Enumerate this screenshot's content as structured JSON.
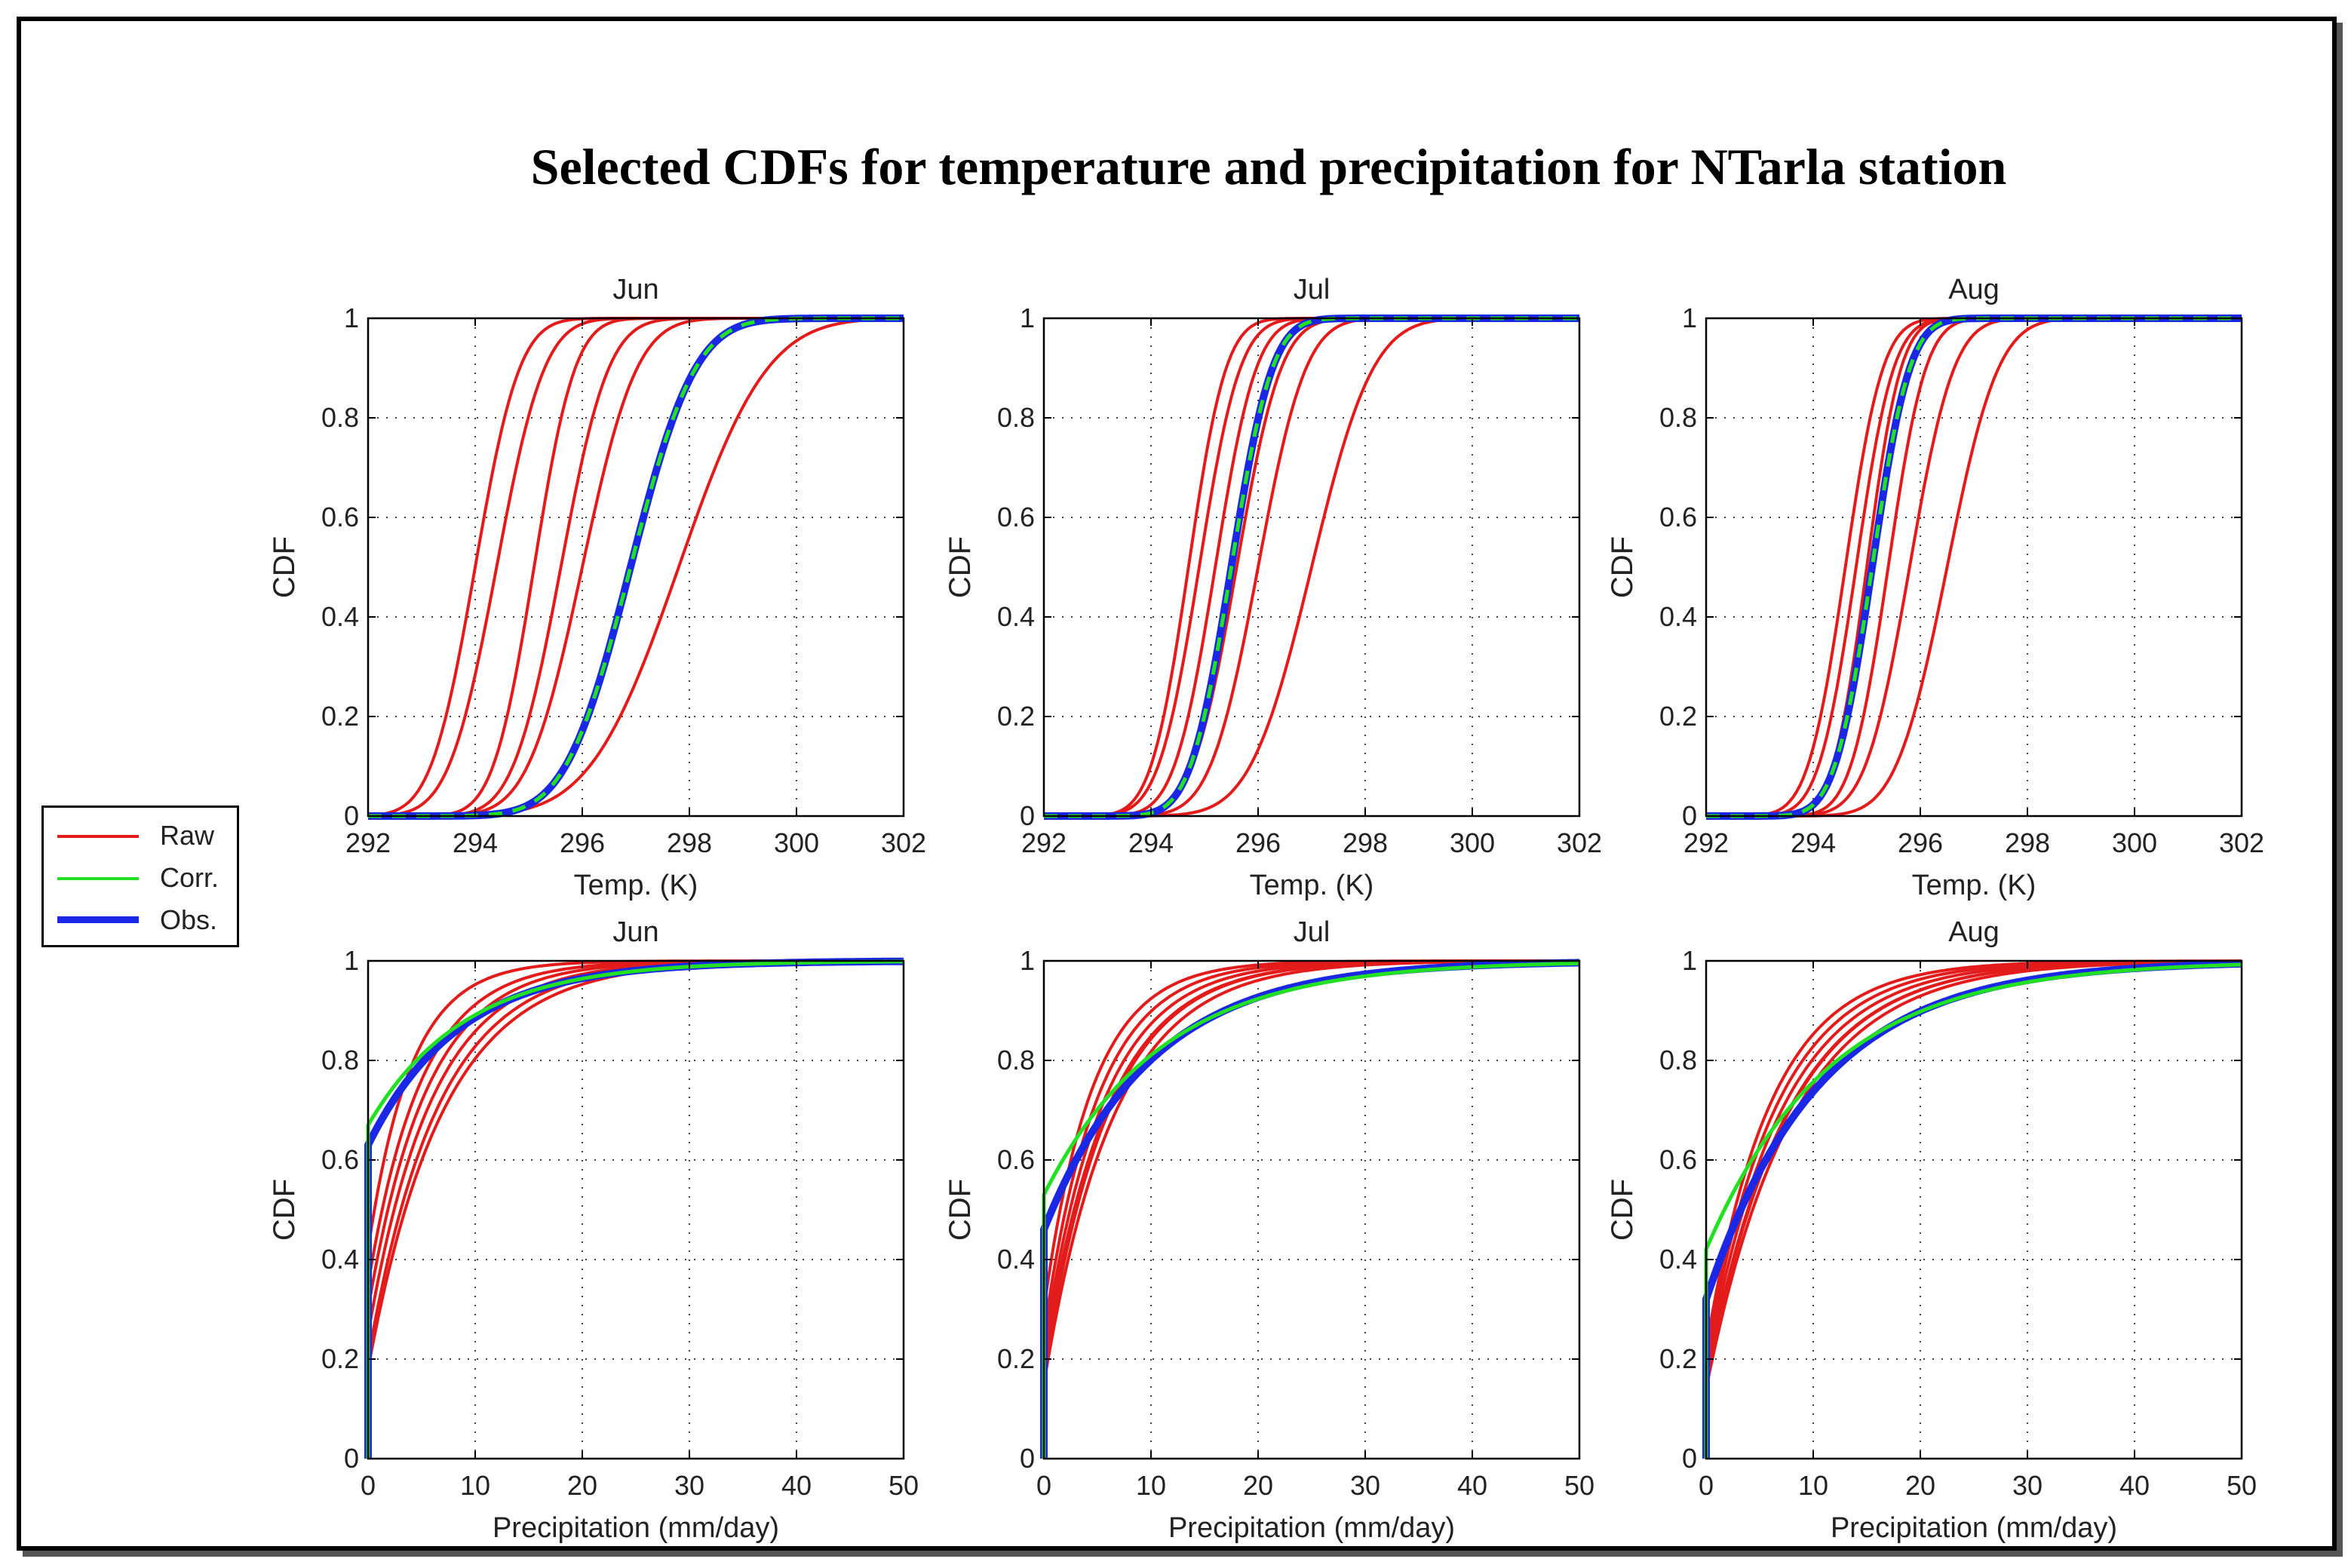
{
  "title": "Selected CDFs for temperature and precipitation for NTarla station",
  "legend": {
    "items": [
      {
        "label": "Raw",
        "color": "#e31b1b"
      },
      {
        "label": "Corr.",
        "color": "#22e022"
      },
      {
        "label": "Obs.",
        "color": "#1a28e6"
      }
    ]
  },
  "chart_data": [
    {
      "type": "line",
      "title": "Jun",
      "xlabel": "Temp. (K)",
      "ylabel": "CDF",
      "xlim": [
        292,
        302
      ],
      "ylim": [
        0,
        1
      ],
      "xticks": [
        292,
        294,
        296,
        298,
        300,
        302
      ],
      "yticks": [
        0,
        0.2,
        0.4,
        0.6,
        0.8,
        1
      ],
      "grid": true,
      "raw_members": [
        {
          "mu": 294.0,
          "sigma": 0.65
        },
        {
          "mu": 294.4,
          "sigma": 0.7
        },
        {
          "mu": 295.1,
          "sigma": 0.6
        },
        {
          "mu": 295.6,
          "sigma": 0.7
        },
        {
          "mu": 296.0,
          "sigma": 0.8
        },
        {
          "mu": 297.8,
          "sigma": 1.3
        }
      ],
      "corrected": {
        "mu": 296.9,
        "sigma": 0.95
      },
      "observed": {
        "mu": 296.9,
        "sigma": 0.95
      }
    },
    {
      "type": "line",
      "title": "Jul",
      "xlabel": "Temp. (K)",
      "ylabel": "CDF",
      "xlim": [
        292,
        302
      ],
      "ylim": [
        0,
        1
      ],
      "xticks": [
        292,
        294,
        296,
        298,
        300,
        302
      ],
      "yticks": [
        0,
        0.2,
        0.4,
        0.6,
        0.8,
        1
      ],
      "grid": true,
      "raw_members": [
        {
          "mu": 294.7,
          "sigma": 0.55
        },
        {
          "mu": 294.9,
          "sigma": 0.6
        },
        {
          "mu": 295.2,
          "sigma": 0.6
        },
        {
          "mu": 295.6,
          "sigma": 0.65
        },
        {
          "mu": 296.0,
          "sigma": 0.7
        },
        {
          "mu": 297.0,
          "sigma": 0.9
        }
      ],
      "corrected": {
        "mu": 295.5,
        "sigma": 0.6
      },
      "observed": {
        "mu": 295.5,
        "sigma": 0.6
      }
    },
    {
      "type": "line",
      "title": "Aug",
      "xlabel": "Temp. (K)",
      "ylabel": "CDF",
      "xlim": [
        292,
        302
      ],
      "ylim": [
        0,
        1
      ],
      "xticks": [
        292,
        294,
        296,
        298,
        300,
        302
      ],
      "yticks": [
        0,
        0.2,
        0.4,
        0.6,
        0.8,
        1
      ],
      "grid": true,
      "raw_members": [
        {
          "mu": 294.6,
          "sigma": 0.55
        },
        {
          "mu": 294.8,
          "sigma": 0.55
        },
        {
          "mu": 295.0,
          "sigma": 0.5
        },
        {
          "mu": 295.4,
          "sigma": 0.55
        },
        {
          "mu": 295.8,
          "sigma": 0.65
        },
        {
          "mu": 296.5,
          "sigma": 0.75
        }
      ],
      "corrected": {
        "mu": 295.1,
        "sigma": 0.55
      },
      "observed": {
        "mu": 295.1,
        "sigma": 0.55
      }
    },
    {
      "type": "line",
      "title": "Jun",
      "xlabel": "Precipitation (mm/day)",
      "ylabel": "CDF",
      "xlim": [
        0,
        50
      ],
      "ylim": [
        0,
        1
      ],
      "xticks": [
        0,
        10,
        20,
        30,
        40,
        50
      ],
      "yticks": [
        0,
        0.2,
        0.4,
        0.6,
        0.8,
        1
      ],
      "grid": true,
      "raw_members": [
        {
          "p0": 0.42,
          "scale": 4.0
        },
        {
          "p0": 0.35,
          "scale": 5.0
        },
        {
          "p0": 0.3,
          "scale": 5.5
        },
        {
          "p0": 0.25,
          "scale": 6.0
        },
        {
          "p0": 0.2,
          "scale": 6.5
        },
        {
          "p0": 0.18,
          "scale": 7.0
        }
      ],
      "corrected": {
        "p0": 0.67,
        "scale": 9.0
      },
      "observed": {
        "p0": 0.63,
        "scale": 8.5
      }
    },
    {
      "type": "line",
      "title": "Jul",
      "xlabel": "Precipitation (mm/day)",
      "ylabel": "CDF",
      "xlim": [
        0,
        50
      ],
      "ylim": [
        0,
        1
      ],
      "xticks": [
        0,
        10,
        20,
        30,
        40,
        50
      ],
      "yticks": [
        0,
        0.2,
        0.4,
        0.6,
        0.8,
        1
      ],
      "grid": true,
      "raw_members": [
        {
          "p0": 0.3,
          "scale": 4.5
        },
        {
          "p0": 0.25,
          "scale": 5.0
        },
        {
          "p0": 0.22,
          "scale": 5.5
        },
        {
          "p0": 0.2,
          "scale": 6.0
        },
        {
          "p0": 0.17,
          "scale": 6.0
        },
        {
          "p0": 0.15,
          "scale": 6.5
        }
      ],
      "corrected": {
        "p0": 0.53,
        "scale": 11.0
      },
      "observed": {
        "p0": 0.46,
        "scale": 10.0
      }
    },
    {
      "type": "line",
      "title": "Aug",
      "xlabel": "Precipitation (mm/day)",
      "ylabel": "CDF",
      "xlim": [
        0,
        50
      ],
      "ylim": [
        0,
        1
      ],
      "xticks": [
        0,
        10,
        20,
        30,
        40,
        50
      ],
      "yticks": [
        0,
        0.2,
        0.4,
        0.6,
        0.8,
        1
      ],
      "grid": true,
      "raw_members": [
        {
          "p0": 0.22,
          "scale": 6.0
        },
        {
          "p0": 0.2,
          "scale": 6.5
        },
        {
          "p0": 0.18,
          "scale": 7.0
        },
        {
          "p0": 0.16,
          "scale": 7.5
        },
        {
          "p0": 0.15,
          "scale": 7.5
        },
        {
          "p0": 0.14,
          "scale": 8.0
        }
      ],
      "corrected": {
        "p0": 0.42,
        "scale": 11.5
      },
      "observed": {
        "p0": 0.32,
        "scale": 10.5
      }
    }
  ]
}
